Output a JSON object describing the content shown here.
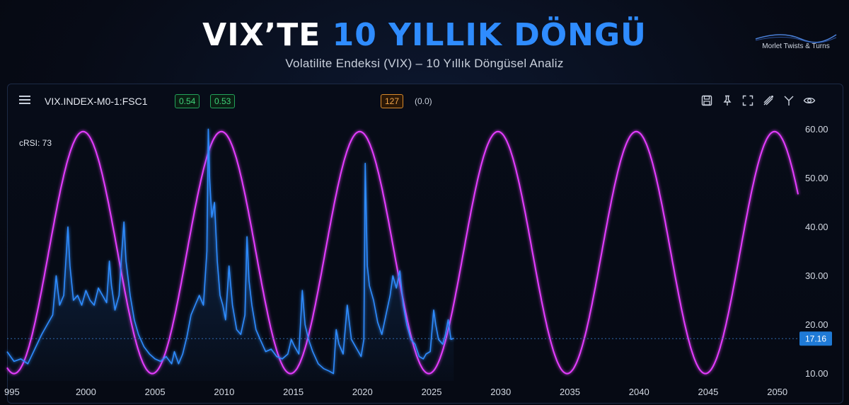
{
  "header": {
    "title_white": "VIX’TE",
    "title_blue": "10 YILLIK DÖNGÜ",
    "subtitle": "Volatilite Endeksi (VIX) – 10 Yıllık Döngüsel Analiz",
    "brand": "Morlet Twists & Turns"
  },
  "toolbar": {
    "symbol": "VIX.INDEX-M0-1:FSC1",
    "badge1": "0.54",
    "badge2": "0.53",
    "badge3": "127",
    "paren": "(0.0)",
    "tools": [
      "save-icon",
      "pin-icon",
      "fullscreen-icon",
      "drawing-icon",
      "indicator-icon",
      "eye-icon"
    ]
  },
  "indicator_label": "cRSI: 73",
  "colors": {
    "vix": "#2f8cff",
    "cycle": "#e53dff",
    "last": "#1f7ad6"
  },
  "chart_data": {
    "type": "line",
    "title": "",
    "xlabel": "",
    "ylabel": "",
    "xlim": [
      1994.3,
      2051.5
    ],
    "ylim": [
      8.5,
      61.5
    ],
    "x_ticks": [
      "995",
      "2000",
      "2005",
      "2010",
      "2015",
      "2020",
      "2025",
      "2030",
      "2035",
      "2040",
      "2045",
      "2050"
    ],
    "y_ticks": [
      "10.00",
      "20.00",
      "30.00",
      "40.00",
      "50.00",
      "60.00"
    ],
    "last_value": "17.16",
    "grid": false,
    "series": [
      {
        "role": "cycle",
        "cycle": {
          "period_years": 10.0,
          "peak_year": 1999.8,
          "min": 10.0,
          "max": 59.5,
          "x_start": 1994.3,
          "x_end": 2051.5
        }
      },
      {
        "role": "vix",
        "x": [
          1994.3,
          1994.8,
          1995.3,
          1995.8,
          1996.3,
          1996.8,
          1997.3,
          1997.6,
          1997.85,
          1998.1,
          1998.4,
          1998.7,
          1998.85,
          1999.1,
          1999.4,
          1999.7,
          2000.0,
          2000.3,
          2000.6,
          2000.9,
          2001.2,
          2001.5,
          2001.7,
          2001.85,
          2002.1,
          2002.4,
          2002.6,
          2002.75,
          2002.9,
          2003.2,
          2003.5,
          2003.8,
          2004.2,
          2004.6,
          2005.0,
          2005.4,
          2005.8,
          2006.2,
          2006.4,
          2006.7,
          2007.0,
          2007.3,
          2007.6,
          2007.9,
          2008.2,
          2008.5,
          2008.75,
          2008.85,
          2008.95,
          2009.1,
          2009.3,
          2009.5,
          2009.7,
          2009.9,
          2010.1,
          2010.35,
          2010.6,
          2010.9,
          2011.2,
          2011.5,
          2011.65,
          2011.8,
          2012.0,
          2012.3,
          2012.6,
          2013.0,
          2013.4,
          2013.8,
          2014.2,
          2014.6,
          2014.85,
          2015.1,
          2015.4,
          2015.65,
          2015.85,
          2016.1,
          2016.4,
          2016.8,
          2017.2,
          2017.6,
          2017.9,
          2018.1,
          2018.3,
          2018.6,
          2018.9,
          2019.2,
          2019.6,
          2019.9,
          2020.1,
          2020.2,
          2020.35,
          2020.5,
          2020.8,
          2021.1,
          2021.4,
          2021.7,
          2022.0,
          2022.2,
          2022.45,
          2022.7,
          2022.95,
          2023.2,
          2023.5,
          2023.8,
          2024.1,
          2024.4,
          2024.6,
          2024.9,
          2025.15,
          2025.3,
          2025.5,
          2025.8,
          2026.0,
          2026.2,
          2026.4,
          2026.6
        ],
        "y": [
          14.5,
          12.5,
          13.0,
          12.0,
          15.0,
          18.0,
          20.5,
          22.0,
          30.0,
          24.0,
          26.0,
          40.0,
          32.0,
          25.0,
          26.0,
          24.0,
          27.0,
          25.0,
          24.0,
          27.5,
          26.0,
          24.5,
          33.0,
          28.0,
          23.0,
          26.0,
          35.0,
          41.0,
          33.0,
          26.0,
          21.0,
          18.0,
          15.5,
          14.0,
          13.0,
          12.5,
          13.5,
          12.0,
          14.5,
          12.0,
          14.0,
          17.5,
          22.0,
          24.0,
          26.0,
          24.0,
          35.0,
          60.0,
          50.0,
          42.0,
          45.0,
          33.0,
          26.0,
          24.0,
          21.0,
          32.0,
          24.0,
          19.0,
          18.0,
          22.0,
          38.0,
          29.0,
          24.0,
          19.0,
          17.0,
          14.5,
          15.0,
          13.5,
          13.0,
          14.0,
          17.0,
          15.5,
          14.0,
          27.0,
          20.0,
          17.0,
          14.5,
          12.0,
          11.0,
          10.5,
          10.0,
          19.0,
          16.0,
          14.0,
          24.0,
          17.0,
          15.0,
          13.5,
          17.0,
          53.0,
          32.0,
          28.0,
          25.0,
          20.5,
          18.0,
          22.0,
          26.0,
          30.0,
          27.5,
          31.0,
          24.0,
          20.0,
          17.0,
          16.0,
          13.5,
          13.0,
          14.0,
          14.5,
          23.0,
          20.0,
          17.0,
          16.0,
          18.0,
          21.0,
          17.0,
          17.2
        ]
      }
    ]
  }
}
